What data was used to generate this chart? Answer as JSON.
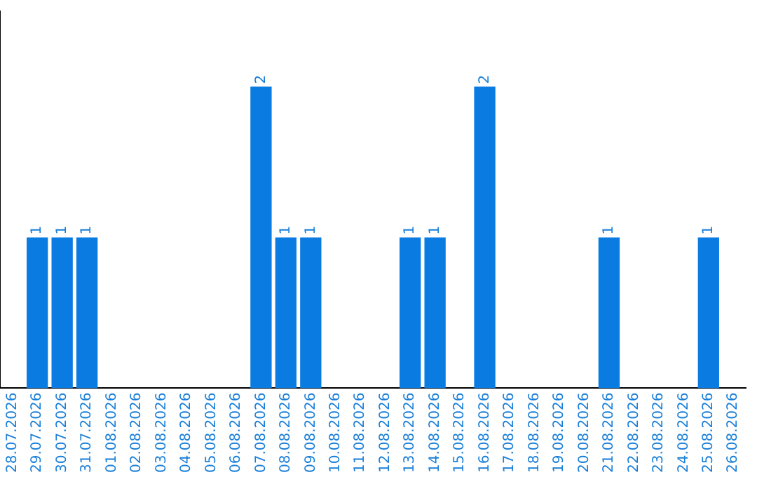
{
  "chart_data": {
    "type": "bar",
    "categories": [
      "28.07.2026",
      "29.07.2026",
      "30.07.2026",
      "31.07.2026",
      "01.08.2026",
      "02.08.2026",
      "03.08.2026",
      "04.08.2026",
      "05.08.2026",
      "06.08.2026",
      "07.08.2026",
      "08.08.2026",
      "09.08.2026",
      "10.08.2026",
      "11.08.2026",
      "12.08.2026",
      "13.08.2026",
      "14.08.2026",
      "15.08.2026",
      "16.08.2026",
      "17.08.2026",
      "18.08.2026",
      "19.08.2026",
      "20.08.2026",
      "21.08.2026",
      "22.08.2026",
      "23.08.2026",
      "24.08.2026",
      "25.08.2026",
      "26.08.2026"
    ],
    "values": [
      0,
      1,
      1,
      1,
      0,
      0,
      0,
      0,
      0,
      0,
      2,
      1,
      1,
      0,
      0,
      0,
      1,
      1,
      0,
      2,
      0,
      0,
      0,
      0,
      1,
      0,
      0,
      0,
      1,
      0
    ],
    "value_labels": [
      null,
      "1",
      "1",
      "1",
      null,
      null,
      null,
      null,
      null,
      null,
      "2",
      "1",
      "1",
      null,
      null,
      null,
      "1",
      "1",
      null,
      "2",
      null,
      null,
      null,
      null,
      "1",
      null,
      null,
      null,
      "1",
      null
    ],
    "color": "#0a7be0",
    "grid": false,
    "legend": false,
    "tick_labels": "x"
  }
}
